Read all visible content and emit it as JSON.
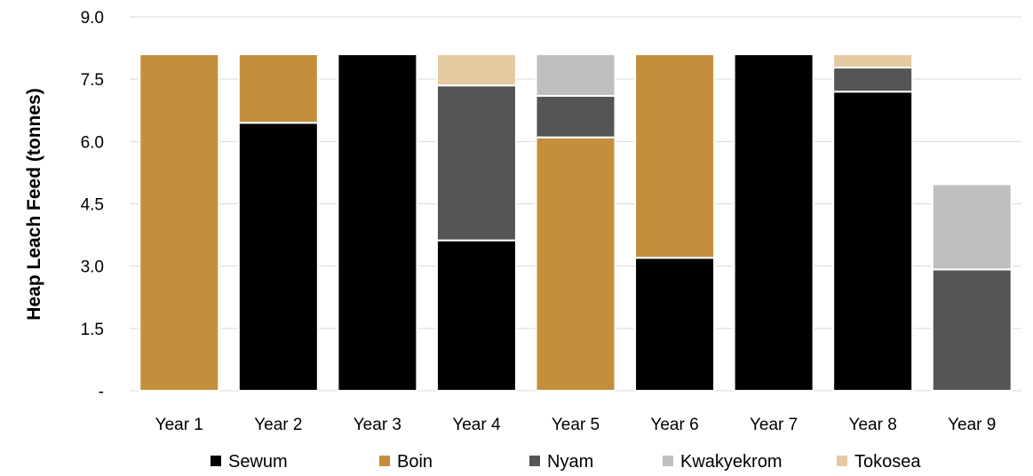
{
  "chart_data": {
    "type": "bar",
    "stacked": true,
    "ylabel": "Heap Leach Feed (tonnes)",
    "xlabel": "",
    "ylim": [
      0,
      9.0
    ],
    "y_ticks": [
      0,
      1.5,
      3.0,
      4.5,
      6.0,
      7.5,
      9.0
    ],
    "y_tick_labels": [
      "-",
      "1.5",
      "3.0",
      "4.5",
      "6.0",
      "7.5",
      "9.0"
    ],
    "grid": true,
    "legend_position": "bottom",
    "categories": [
      "Year 1",
      "Year 2",
      "Year 3",
      "Year 4",
      "Year 5",
      "Year 6",
      "Year 7",
      "Year 8",
      "Year 9"
    ],
    "series": [
      {
        "name": "Sewum",
        "color": "#000000",
        "values": [
          0,
          6.45,
          8.1,
          3.62,
          0,
          3.2,
          8.1,
          7.2,
          0
        ]
      },
      {
        "name": "Boin",
        "color": "#C48F3C",
        "values": [
          8.1,
          1.65,
          0,
          0,
          6.1,
          4.9,
          0,
          0,
          0
        ]
      },
      {
        "name": "Nyam",
        "color": "#555555",
        "values": [
          0,
          0,
          0,
          3.73,
          1.0,
          0,
          0,
          0.58,
          2.92
        ]
      },
      {
        "name": "Kwakyekrom",
        "color": "#BFBFBF",
        "values": [
          0,
          0,
          0,
          0,
          1.0,
          0,
          0,
          0,
          2.05
        ]
      },
      {
        "name": "Tokosea",
        "color": "#E5C9A0",
        "values": [
          0,
          0,
          0,
          0.75,
          0,
          0,
          0,
          0.32,
          0
        ]
      }
    ]
  }
}
